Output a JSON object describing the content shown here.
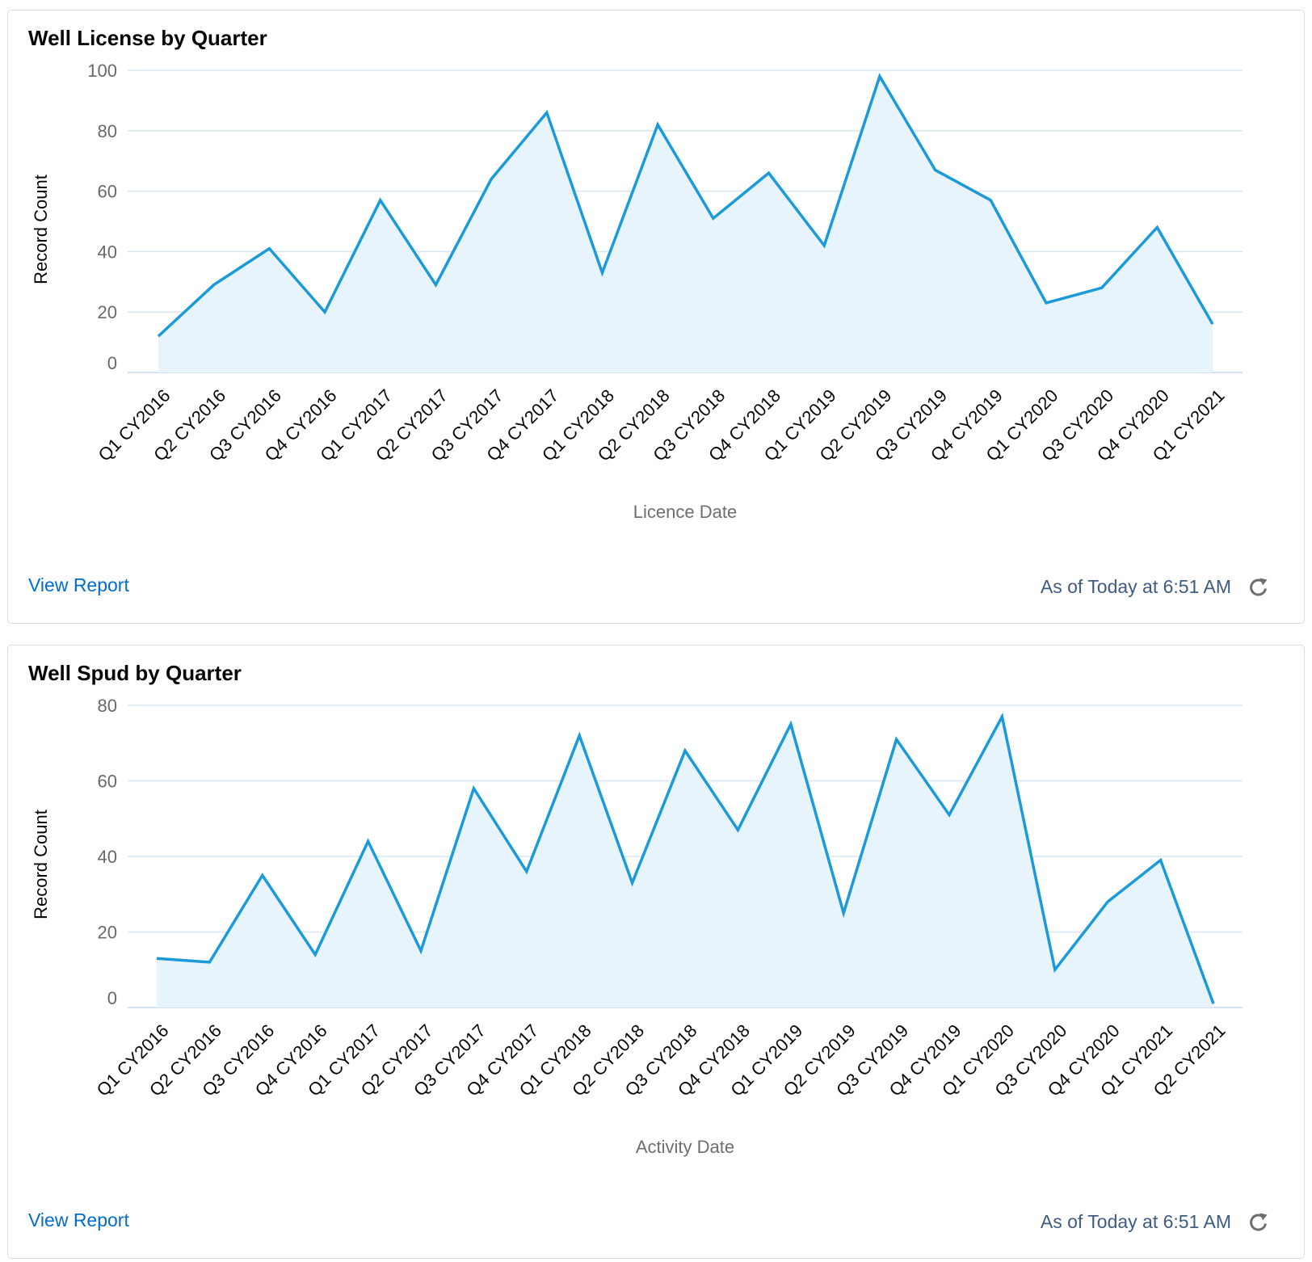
{
  "cards": [
    {
      "title": "Well License by Quarter",
      "view_report_label": "View Report",
      "as_of_label": "As of Today at 6:51 AM",
      "refresh_icon": "refresh-icon"
    },
    {
      "title": "Well Spud by Quarter",
      "view_report_label": "View Report",
      "as_of_label": "As of Today at 6:51 AM",
      "refresh_icon": "refresh-icon"
    }
  ],
  "colors": {
    "line": "#1b9ad9",
    "area": "#e8f4fc",
    "link": "#006dcc",
    "timestamp": "#3e5c82"
  },
  "chart_data": [
    {
      "type": "area",
      "title": "Well License by Quarter",
      "xlabel": "Licence Date",
      "ylabel": "Record Count",
      "ylim": [
        0,
        100
      ],
      "yticks": [
        0,
        20,
        40,
        60,
        80,
        100
      ],
      "categories": [
        "Q1 CY2016",
        "Q2 CY2016",
        "Q3 CY2016",
        "Q4 CY2016",
        "Q1 CY2017",
        "Q2 CY2017",
        "Q3 CY2017",
        "Q4 CY2017",
        "Q1 CY2018",
        "Q2 CY2018",
        "Q3 CY2018",
        "Q4 CY2018",
        "Q1 CY2019",
        "Q2 CY2019",
        "Q3 CY2019",
        "Q4 CY2019",
        "Q1 CY2020",
        "Q3 CY2020",
        "Q4 CY2020",
        "Q1 CY2021"
      ],
      "series": [
        {
          "name": "Record Count",
          "values": [
            12,
            29,
            41,
            20,
            57,
            29,
            64,
            86,
            33,
            82,
            51,
            66,
            42,
            98,
            67,
            57,
            23,
            28,
            48,
            16
          ]
        }
      ]
    },
    {
      "type": "area",
      "title": "Well Spud by Quarter",
      "xlabel": "Activity Date",
      "ylabel": "Record Count",
      "ylim": [
        0,
        80
      ],
      "yticks": [
        0,
        20,
        40,
        60,
        80
      ],
      "categories": [
        "Q1 CY2016",
        "Q2 CY2016",
        "Q3 CY2016",
        "Q4 CY2016",
        "Q1 CY2017",
        "Q2 CY2017",
        "Q3 CY2017",
        "Q4 CY2017",
        "Q1 CY2018",
        "Q2 CY2018",
        "Q3 CY2018",
        "Q4 CY2018",
        "Q1 CY2019",
        "Q2 CY2019",
        "Q3 CY2019",
        "Q4 CY2019",
        "Q1 CY2020",
        "Q3 CY2020",
        "Q4 CY2020",
        "Q1 CY2021",
        "Q2 CY2021"
      ],
      "series": [
        {
          "name": "Record Count",
          "values": [
            13,
            12,
            35,
            14,
            44,
            15,
            58,
            36,
            72,
            33,
            68,
            47,
            75,
            25,
            71,
            51,
            77,
            10,
            28,
            39,
            1
          ]
        }
      ]
    }
  ]
}
